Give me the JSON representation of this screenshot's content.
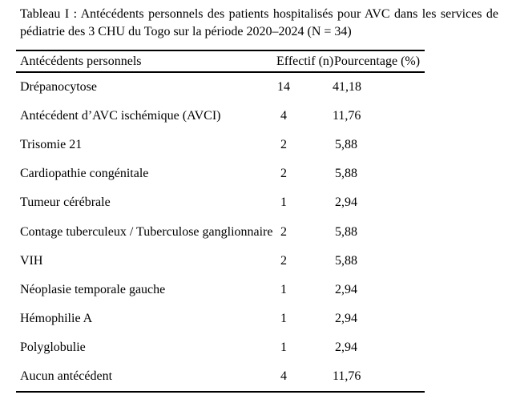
{
  "page": {
    "background_color": "#ffffff",
    "text_color": "#000000",
    "rule_color": "#000000"
  },
  "title": {
    "full": "Tableau I : Antécédents personnels des patients hospitalisés pour AVC dans les services de pédiatrie des 3 CHU du Togo sur la période 2020–2024 (N = 34)",
    "line1": "Tableau I : Antécédents personnels des patients hospitalisés pour AVC dans les services de",
    "line2": "pédiatrie des 3 CHU du Togo sur la période 2020–2024 (N = 34)"
  },
  "table": {
    "columns": [
      "Antécédents personnels",
      "Effectif (n)",
      "Pourcentage (%)"
    ],
    "rows": [
      {
        "label": "Drépanocytose",
        "effectif": "14",
        "pourcentage": "41,18"
      },
      {
        "label": "Antécédent d’AVC ischémique (AVCI)",
        "effectif": "4",
        "pourcentage": "11,76"
      },
      {
        "label": "Trisomie 21",
        "effectif": "2",
        "pourcentage": "5,88"
      },
      {
        "label": "Cardiopathie congénitale",
        "effectif": "2",
        "pourcentage": "5,88"
      },
      {
        "label": "Tumeur cérébrale",
        "effectif": "1",
        "pourcentage": "2,94"
      },
      {
        "label": "Contage tuberculeux / Tuberculose ganglionnaire",
        "effectif": "2",
        "pourcentage": "5,88"
      },
      {
        "label": "VIH",
        "effectif": "2",
        "pourcentage": "5,88"
      },
      {
        "label": "Néoplasie temporale gauche",
        "effectif": "1",
        "pourcentage": "2,94"
      },
      {
        "label": "Hémophilie A",
        "effectif": "1",
        "pourcentage": "2,94"
      },
      {
        "label": "Polyglobulie",
        "effectif": "1",
        "pourcentage": "2,94"
      },
      {
        "label": "Aucun antécédent",
        "effectif": "4",
        "pourcentage": "11,76"
      }
    ]
  }
}
